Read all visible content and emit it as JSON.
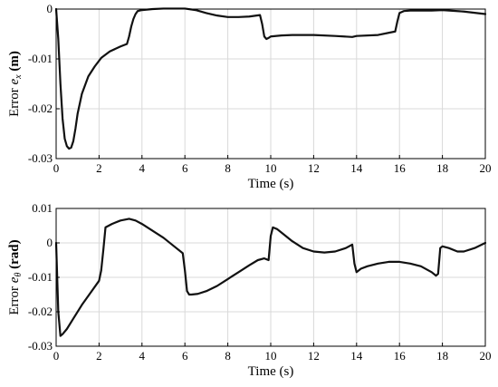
{
  "chart_data": [
    {
      "type": "line",
      "xlabel": "Time (s)",
      "ylabel": {
        "text": "Error ",
        "symbol": "e",
        "subscript": "x",
        "unit": " (m)"
      },
      "xlim": [
        0,
        20
      ],
      "ylim": [
        -0.03,
        0
      ],
      "xticks": [
        0,
        2,
        4,
        6,
        8,
        10,
        12,
        14,
        16,
        18,
        20
      ],
      "yticks": [
        0,
        -0.01,
        -0.02,
        -0.03
      ],
      "ytick_labels": [
        "0",
        "-0.01",
        "-0.02",
        "-0.03"
      ],
      "grid": true,
      "series": [
        {
          "x": [
            0,
            0.1,
            0.2,
            0.3,
            0.4,
            0.5,
            0.6,
            0.7,
            0.8,
            0.9,
            1.0,
            1.2,
            1.5,
            1.8,
            2.1,
            2.5,
            3.0,
            3.3,
            3.4,
            3.5,
            3.6,
            3.7,
            3.8,
            4.0,
            4.5,
            5.0,
            5.5,
            6.0,
            6.5,
            7.0,
            7.5,
            8.0,
            8.5,
            9.0,
            9.5,
            9.6,
            9.7,
            9.8,
            9.9,
            10.0,
            10.5,
            11.0,
            12.0,
            13.0,
            13.8,
            14.0,
            15.0,
            15.8,
            15.9,
            16.0,
            16.2,
            16.5,
            17.0,
            17.5,
            18.0,
            19.0,
            20.0
          ],
          "y": [
            0,
            -0.006,
            -0.015,
            -0.022,
            -0.026,
            -0.0275,
            -0.028,
            -0.0278,
            -0.0265,
            -0.024,
            -0.021,
            -0.017,
            -0.0135,
            -0.0115,
            -0.0098,
            -0.0085,
            -0.0075,
            -0.007,
            -0.0055,
            -0.0035,
            -0.002,
            -0.001,
            -0.0004,
            -0.0002,
            0.0,
            0.0001,
            0.0001,
            0.0001,
            -0.0002,
            -0.0008,
            -0.0013,
            -0.0016,
            -0.0016,
            -0.0015,
            -0.0012,
            -0.003,
            -0.0055,
            -0.006,
            -0.0058,
            -0.0055,
            -0.0053,
            -0.0052,
            -0.0052,
            -0.0054,
            -0.0056,
            -0.0054,
            -0.0052,
            -0.0045,
            -0.0025,
            -0.0008,
            -0.0004,
            -0.0003,
            -0.0003,
            -0.0003,
            -0.0002,
            -0.0005,
            -0.001
          ]
        }
      ]
    },
    {
      "type": "line",
      "xlabel": "Time (s)",
      "ylabel": {
        "text": "Error ",
        "symbol": "e",
        "subscript": "θ",
        "unit": " (rad)"
      },
      "xlim": [
        0,
        20
      ],
      "ylim": [
        -0.03,
        0.01
      ],
      "xticks": [
        0,
        2,
        4,
        6,
        8,
        10,
        12,
        14,
        16,
        18,
        20
      ],
      "yticks": [
        0.01,
        0,
        -0.01,
        -0.02,
        -0.03
      ],
      "ytick_labels": [
        "0.01",
        "0",
        "-0.01",
        "-0.02",
        "-0.03"
      ],
      "grid": true,
      "series": [
        {
          "x": [
            0,
            0.1,
            0.2,
            0.3,
            0.5,
            0.8,
            1.2,
            1.6,
            2.0,
            2.1,
            2.2,
            2.3,
            2.6,
            3.0,
            3.4,
            3.7,
            4.0,
            4.5,
            5.0,
            5.5,
            5.9,
            6.0,
            6.1,
            6.2,
            6.3,
            6.6,
            7.0,
            7.5,
            8.0,
            8.5,
            9.0,
            9.4,
            9.7,
            9.9,
            10.0,
            10.1,
            10.3,
            10.6,
            11.0,
            11.5,
            12.0,
            12.5,
            13.0,
            13.5,
            13.8,
            13.9,
            14.0,
            14.2,
            14.5,
            15.0,
            15.5,
            16.0,
            16.5,
            17.0,
            17.5,
            17.7,
            17.8,
            17.9,
            18.0,
            18.3,
            18.7,
            19.0,
            19.5,
            20.0
          ],
          "y": [
            0,
            -0.02,
            -0.027,
            -0.0265,
            -0.025,
            -0.022,
            -0.018,
            -0.0145,
            -0.011,
            -0.008,
            -0.002,
            0.0045,
            0.0055,
            0.0065,
            0.007,
            0.0065,
            0.0055,
            0.0035,
            0.0015,
            -0.001,
            -0.003,
            -0.008,
            -0.014,
            -0.015,
            -0.015,
            -0.0148,
            -0.014,
            -0.0125,
            -0.0105,
            -0.0085,
            -0.0065,
            -0.005,
            -0.0045,
            -0.005,
            0.002,
            0.0045,
            0.004,
            0.0025,
            0.0005,
            -0.0015,
            -0.0025,
            -0.0028,
            -0.0025,
            -0.0015,
            -0.0005,
            -0.006,
            -0.0085,
            -0.0075,
            -0.0068,
            -0.006,
            -0.0055,
            -0.0055,
            -0.006,
            -0.0068,
            -0.0085,
            -0.0095,
            -0.009,
            -0.0015,
            -0.001,
            -0.0015,
            -0.0025,
            -0.0025,
            -0.0015,
            0.0
          ]
        }
      ]
    }
  ]
}
